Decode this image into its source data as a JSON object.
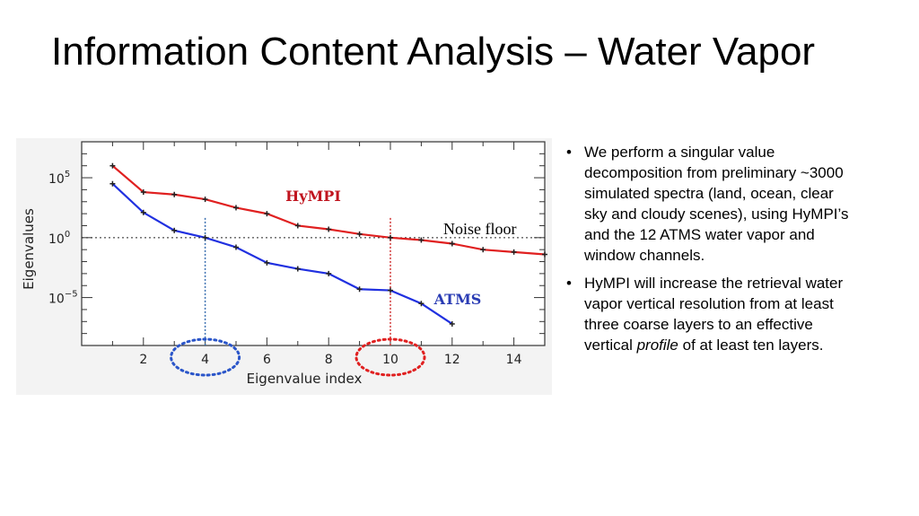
{
  "slide": {
    "title": "Information Content Analysis – Water Vapor"
  },
  "bullets": [
    {
      "segments": [
        {
          "text": "We perform a singular value decomposition from preliminary ~3000 simulated spectra (land, ocean, clear sky and cloudy scenes), using HyMPI’s and the 12 ATMS water vapor and window channels.",
          "italic": false
        }
      ]
    },
    {
      "segments": [
        {
          "text": "HyMPI will increase the retrieval water vapor vertical resolution from at least three coarse layers to an effective vertical ",
          "italic": false
        },
        {
          "text": "profile",
          "italic": true
        },
        {
          "text": " of at least ten layers.",
          "italic": false
        }
      ]
    }
  ],
  "chart_data": {
    "type": "line",
    "xlabel": "Eigenvalue index",
    "ylabel": "Eigenvalues",
    "xlim": [
      0,
      15
    ],
    "ylim_log10": [
      -9,
      8
    ],
    "y_scale": "log",
    "x_ticks": [
      2,
      4,
      6,
      8,
      10,
      12,
      14
    ],
    "y_ticks": [
      {
        "exp": 5,
        "label": "10",
        "sup": "5"
      },
      {
        "exp": 0,
        "label": "10",
        "sup": "0"
      },
      {
        "exp": -5,
        "label": "10",
        "sup": "−5"
      }
    ],
    "series": [
      {
        "name": "HyMPI",
        "color": "#e02020",
        "label_color": "#c0141e",
        "x": [
          1,
          2,
          3,
          4,
          5,
          6,
          7,
          8,
          9,
          10,
          11,
          12,
          13,
          14,
          15
        ],
        "log10_y": [
          6.0,
          3.8,
          3.6,
          3.2,
          2.5,
          2.0,
          1.0,
          0.7,
          0.3,
          0.0,
          -0.2,
          -0.5,
          -1.0,
          -1.2,
          -1.4
        ]
      },
      {
        "name": "ATMS",
        "color": "#2030e0",
        "label_color": "#2a3cb4",
        "x": [
          1,
          2,
          3,
          4,
          5,
          6,
          7,
          8,
          9,
          10,
          11,
          12
        ],
        "log10_y": [
          4.5,
          2.1,
          0.6,
          0.0,
          -0.8,
          -2.1,
          -2.6,
          -3.0,
          -4.3,
          -4.4,
          -5.5,
          -7.2
        ]
      }
    ],
    "annotations": {
      "noise_floor": {
        "label": "Noise floor",
        "log10_y": 0
      },
      "atms_cutoff": {
        "x": 4,
        "color": "#3a6fb0"
      },
      "hympi_cutoff": {
        "x": 10,
        "color": "#d03030"
      },
      "atms_circle_color": "#2a55c9",
      "hympi_circle_color": "#e02020"
    }
  }
}
